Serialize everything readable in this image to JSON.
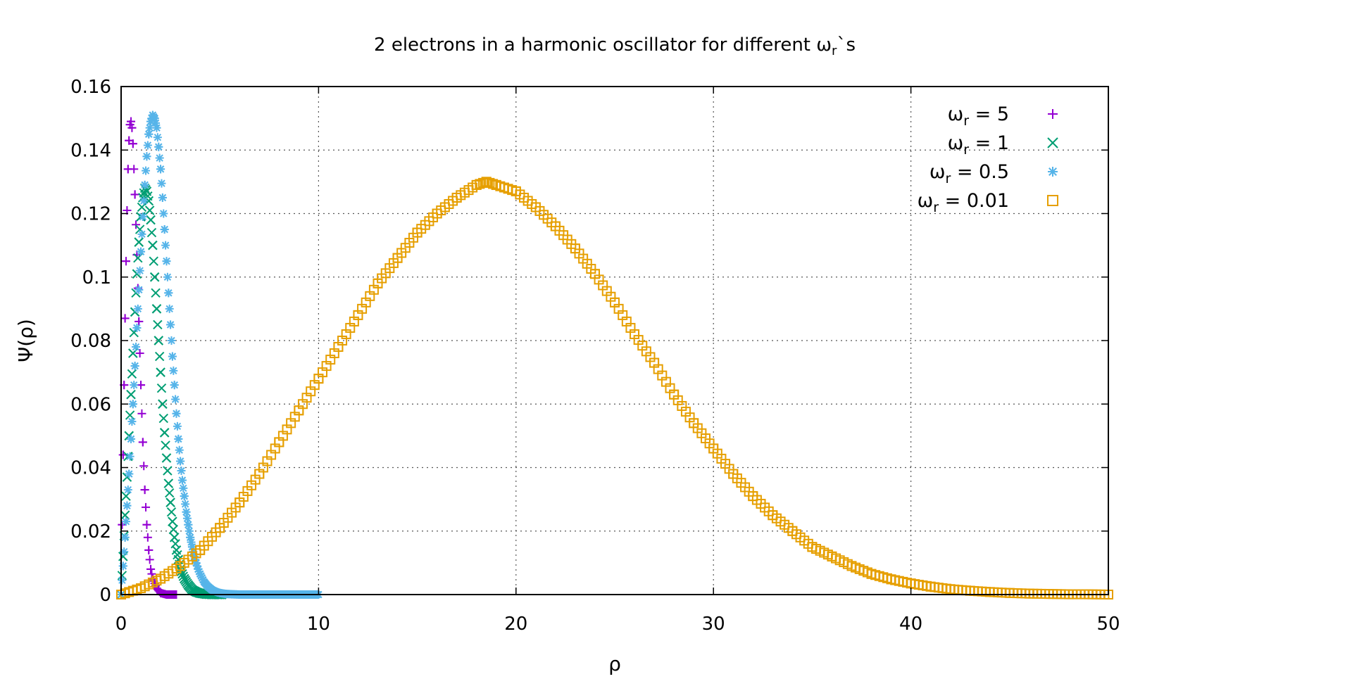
{
  "chart_data": {
    "type": "scatter",
    "title": "2 electrons in a harmonic oscillator for different ωr`s",
    "title_parts": {
      "pre": "2 electrons in a harmonic oscillator for different ω",
      "sub": "r",
      "post": "`s"
    },
    "xlabel": "ρ",
    "ylabel": "Ψ(ρ)",
    "xlim": [
      0,
      50
    ],
    "ylim": [
      0,
      0.16
    ],
    "x_ticks": [
      0,
      10,
      20,
      30,
      40,
      50
    ],
    "x_tick_labels": [
      "0",
      "10",
      "20",
      "30",
      "40",
      "50"
    ],
    "y_ticks": [
      0,
      0.02,
      0.04,
      0.06,
      0.08,
      0.1,
      0.12,
      0.14,
      0.16
    ],
    "y_tick_labels": [
      "0",
      "0.02",
      "0.04",
      "0.06",
      "0.08",
      "0.1",
      "0.12",
      "0.14",
      "0.16"
    ],
    "grid": true,
    "legend_position": "top-right",
    "series": [
      {
        "name": "ωr = 5",
        "legend_label": {
          "pre": "ω",
          "sub": "r",
          "post": " = 5"
        },
        "marker": "plus",
        "color": "#9400d3",
        "points": [
          [
            0.0,
            0.0
          ],
          [
            0.05,
            0.022
          ],
          [
            0.1,
            0.044
          ],
          [
            0.15,
            0.066
          ],
          [
            0.2,
            0.087
          ],
          [
            0.25,
            0.105
          ],
          [
            0.3,
            0.121
          ],
          [
            0.35,
            0.134
          ],
          [
            0.4,
            0.143
          ],
          [
            0.45,
            0.148
          ],
          [
            0.5,
            0.149
          ],
          [
            0.55,
            0.147
          ],
          [
            0.6,
            0.142
          ],
          [
            0.7,
            0.126
          ],
          [
            0.8,
            0.107
          ],
          [
            0.9,
            0.086
          ],
          [
            1.0,
            0.066
          ],
          [
            1.1,
            0.048
          ],
          [
            1.2,
            0.033
          ],
          [
            1.3,
            0.022
          ],
          [
            1.4,
            0.014
          ],
          [
            1.5,
            0.008
          ],
          [
            1.6,
            0.005
          ],
          [
            1.8,
            0.002
          ],
          [
            2.0,
            0.0005
          ],
          [
            2.3,
            0.0
          ],
          [
            2.6,
            0.0
          ],
          [
            2.8,
            0.0
          ]
        ]
      },
      {
        "name": "ωr = 1",
        "legend_label": {
          "pre": "ω",
          "sub": "r",
          "post": " = 1"
        },
        "marker": "cross",
        "color": "#009e73",
        "points": [
          [
            0.0,
            0.0
          ],
          [
            0.1,
            0.012
          ],
          [
            0.2,
            0.025
          ],
          [
            0.3,
            0.037
          ],
          [
            0.4,
            0.05
          ],
          [
            0.5,
            0.063
          ],
          [
            0.6,
            0.076
          ],
          [
            0.7,
            0.089
          ],
          [
            0.8,
            0.101
          ],
          [
            0.9,
            0.111
          ],
          [
            1.0,
            0.119
          ],
          [
            1.1,
            0.125
          ],
          [
            1.2,
            0.128
          ],
          [
            1.3,
            0.127
          ],
          [
            1.4,
            0.124
          ],
          [
            1.5,
            0.118
          ],
          [
            1.6,
            0.11
          ],
          [
            1.7,
            0.1
          ],
          [
            1.8,
            0.09
          ],
          [
            1.9,
            0.08
          ],
          [
            2.0,
            0.07
          ],
          [
            2.1,
            0.06
          ],
          [
            2.2,
            0.051
          ],
          [
            2.3,
            0.043
          ],
          [
            2.4,
            0.035
          ],
          [
            2.5,
            0.029
          ],
          [
            2.6,
            0.023
          ],
          [
            2.7,
            0.018
          ],
          [
            2.8,
            0.014
          ],
          [
            2.9,
            0.011
          ],
          [
            3.0,
            0.008
          ],
          [
            3.2,
            0.005
          ],
          [
            3.4,
            0.003
          ],
          [
            3.6,
            0.0015
          ],
          [
            3.8,
            0.0008
          ],
          [
            4.0,
            0.0004
          ],
          [
            4.3,
            0.0001
          ],
          [
            4.6,
            0.0
          ],
          [
            4.9,
            0.0
          ],
          [
            5.1,
            0.0
          ]
        ]
      },
      {
        "name": "ωr = 0.5",
        "legend_label": {
          "pre": "ω",
          "sub": "r",
          "post": " = 0.5"
        },
        "marker": "star",
        "color": "#56b4e9",
        "points": [
          [
            0.0,
            0.0
          ],
          [
            0.1,
            0.009
          ],
          [
            0.2,
            0.018
          ],
          [
            0.3,
            0.028
          ],
          [
            0.4,
            0.038
          ],
          [
            0.5,
            0.049
          ],
          [
            0.6,
            0.06
          ],
          [
            0.7,
            0.072
          ],
          [
            0.8,
            0.084
          ],
          [
            0.9,
            0.096
          ],
          [
            1.0,
            0.108
          ],
          [
            1.1,
            0.119
          ],
          [
            1.2,
            0.129
          ],
          [
            1.3,
            0.138
          ],
          [
            1.4,
            0.145
          ],
          [
            1.5,
            0.149
          ],
          [
            1.6,
            0.151
          ],
          [
            1.7,
            0.15
          ],
          [
            1.8,
            0.147
          ],
          [
            1.9,
            0.141
          ],
          [
            2.0,
            0.134
          ],
          [
            2.1,
            0.125
          ],
          [
            2.2,
            0.115
          ],
          [
            2.3,
            0.105
          ],
          [
            2.4,
            0.095
          ],
          [
            2.5,
            0.085
          ],
          [
            2.6,
            0.075
          ],
          [
            2.7,
            0.066
          ],
          [
            2.8,
            0.057
          ],
          [
            2.9,
            0.049
          ],
          [
            3.0,
            0.042
          ],
          [
            3.1,
            0.036
          ],
          [
            3.2,
            0.031
          ],
          [
            3.3,
            0.026
          ],
          [
            3.4,
            0.022
          ],
          [
            3.5,
            0.018
          ],
          [
            3.6,
            0.015
          ],
          [
            3.7,
            0.012
          ],
          [
            3.8,
            0.01
          ],
          [
            3.9,
            0.008
          ],
          [
            4.0,
            0.0065
          ],
          [
            4.2,
            0.004
          ],
          [
            4.4,
            0.0025
          ],
          [
            4.6,
            0.0015
          ],
          [
            4.8,
            0.0009
          ],
          [
            5.0,
            0.0005
          ],
          [
            5.3,
            0.0002
          ],
          [
            5.6,
            0.0001
          ],
          [
            6.0,
            0.0
          ],
          [
            6.5,
            0.0
          ],
          [
            7.0,
            0.0
          ],
          [
            7.5,
            0.0
          ],
          [
            8.0,
            0.0
          ],
          [
            8.5,
            0.0
          ],
          [
            9.0,
            0.0
          ],
          [
            9.5,
            0.0
          ],
          [
            10.0,
            0.0
          ]
        ]
      },
      {
        "name": "ωr = 0.01",
        "legend_label": {
          "pre": "ω",
          "sub": "r",
          "post": " = 0.01"
        },
        "marker": "square",
        "color": "#e69f00",
        "points": [
          [
            0.0,
            0.0
          ],
          [
            1.0,
            0.002
          ],
          [
            2.0,
            0.005
          ],
          [
            3.0,
            0.009
          ],
          [
            4.0,
            0.014
          ],
          [
            5.0,
            0.021
          ],
          [
            6.0,
            0.029
          ],
          [
            7.0,
            0.038
          ],
          [
            8.0,
            0.048
          ],
          [
            9.0,
            0.058
          ],
          [
            10.0,
            0.068
          ],
          [
            11.0,
            0.078
          ],
          [
            12.0,
            0.088
          ],
          [
            13.0,
            0.098
          ],
          [
            14.0,
            0.106
          ],
          [
            15.0,
            0.114
          ],
          [
            16.0,
            0.12
          ],
          [
            17.0,
            0.125
          ],
          [
            18.0,
            0.129
          ],
          [
            18.5,
            0.13
          ],
          [
            19.0,
            0.129
          ],
          [
            20.0,
            0.127
          ],
          [
            21.0,
            0.122
          ],
          [
            22.0,
            0.116
          ],
          [
            23.0,
            0.109
          ],
          [
            24.0,
            0.101
          ],
          [
            25.0,
            0.092
          ],
          [
            26.0,
            0.082
          ],
          [
            27.0,
            0.073
          ],
          [
            28.0,
            0.063
          ],
          [
            29.0,
            0.054
          ],
          [
            30.0,
            0.046
          ],
          [
            31.0,
            0.038
          ],
          [
            32.0,
            0.031
          ],
          [
            33.0,
            0.025
          ],
          [
            34.0,
            0.02
          ],
          [
            35.0,
            0.015
          ],
          [
            36.0,
            0.012
          ],
          [
            37.0,
            0.009
          ],
          [
            38.0,
            0.0065
          ],
          [
            39.0,
            0.0048
          ],
          [
            40.0,
            0.0035
          ],
          [
            41.0,
            0.0025
          ],
          [
            42.0,
            0.0017
          ],
          [
            43.0,
            0.0012
          ],
          [
            44.0,
            0.0008
          ],
          [
            45.0,
            0.0005
          ],
          [
            46.0,
            0.0003
          ],
          [
            47.0,
            0.0002
          ],
          [
            48.0,
            0.0001
          ],
          [
            49.0,
            0.0001
          ],
          [
            50.0,
            0.0
          ]
        ]
      }
    ]
  }
}
